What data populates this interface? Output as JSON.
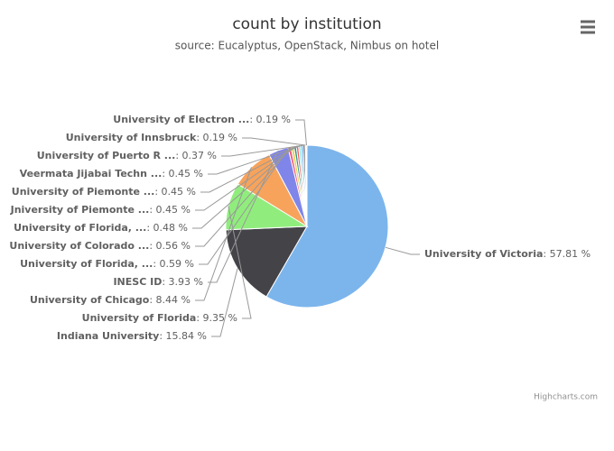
{
  "chart_data": {
    "type": "pie",
    "title": "count by institution",
    "subtitle": "source: Eucalyptus, OpenStack, Nimbus on hotel",
    "credits": "Highcharts.com",
    "categories": [
      "University of Victoria",
      "Indiana University",
      "University of Florida",
      "University of Chicago",
      "INESC ID",
      "University of Florida, ...",
      "University of Colorado ...",
      "University of Florida, ...",
      "Jniversity of Piemonte ...",
      "University of Piemonte ...",
      "Veermata Jijabai Techn ...",
      "University of Puerto R ...",
      "University of Innsbruck",
      "University of Electron ..."
    ],
    "values": [
      57.81,
      15.84,
      9.35,
      8.44,
      3.93,
      0.59,
      0.56,
      0.48,
      0.45,
      0.45,
      0.45,
      0.37,
      0.19,
      0.19
    ],
    "value_labels": [
      ": 57.81 %",
      ": 15.84 %",
      ": 9.35 %",
      ": 8.44 %",
      ": 3.93 %",
      ": 0.59 %",
      ": 0.56 %",
      ": 0.48 %",
      ": 0.45 %",
      ": 0.45 %",
      ": 0.45 %",
      ": 0.37 %",
      ": 0.19 %",
      ": 0.19 %"
    ],
    "colors": [
      "#7cb5ec",
      "#434348",
      "#90ed7d",
      "#f7a35c",
      "#8085e9",
      "#f15c80",
      "#e4d354",
      "#2b908f",
      "#f45b5b",
      "#91e8e1",
      "#7cb5ec",
      "#434348",
      "#90ed7d",
      "#f7a35c"
    ]
  }
}
